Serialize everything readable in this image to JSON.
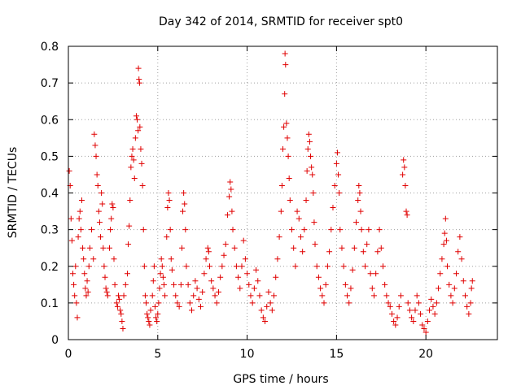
{
  "chart_data": {
    "type": "scatter",
    "title": "Day 342 of 2014, SRMTID for receiver spt0",
    "xlabel": "GPS time / hours",
    "ylabel": "SRMTID / TECUs",
    "xlim": [
      0,
      24
    ],
    "ylim": [
      0,
      0.8
    ],
    "xticks": [
      0,
      5,
      10,
      15,
      20
    ],
    "yticks": [
      0,
      0.1,
      0.2,
      0.3,
      0.4,
      0.5,
      0.6,
      0.7,
      0.8
    ],
    "xtick_labels": [
      "0",
      "5",
      "10",
      "15",
      "20"
    ],
    "ytick_labels": [
      "0",
      "0.1",
      "0.2",
      "0.3",
      "0.4",
      "0.5",
      "0.6",
      "0.7",
      "0.8"
    ],
    "marker": "+",
    "marker_color": "#e00000",
    "grid": true,
    "series": [
      {
        "name": "spt0",
        "points": [
          [
            0.05,
            0.46
          ],
          [
            0.1,
            0.42
          ],
          [
            0.15,
            0.33
          ],
          [
            0.2,
            0.27
          ],
          [
            0.25,
            0.18
          ],
          [
            0.3,
            0.15
          ],
          [
            0.35,
            0.12
          ],
          [
            0.4,
            0.2
          ],
          [
            0.45,
            0.1
          ],
          [
            0.5,
            0.06
          ],
          [
            0.55,
            0.28
          ],
          [
            0.6,
            0.33
          ],
          [
            0.65,
            0.35
          ],
          [
            0.7,
            0.3
          ],
          [
            0.75,
            0.38
          ],
          [
            0.8,
            0.25
          ],
          [
            0.85,
            0.22
          ],
          [
            0.9,
            0.18
          ],
          [
            0.95,
            0.14
          ],
          [
            1.0,
            0.12
          ],
          [
            1.05,
            0.16
          ],
          [
            1.1,
            0.13
          ],
          [
            1.15,
            0.2
          ],
          [
            1.2,
            0.25
          ],
          [
            1.3,
            0.3
          ],
          [
            1.4,
            0.22
          ],
          [
            1.45,
            0.56
          ],
          [
            1.5,
            0.53
          ],
          [
            1.55,
            0.5
          ],
          [
            1.6,
            0.45
          ],
          [
            1.65,
            0.42
          ],
          [
            1.7,
            0.35
          ],
          [
            1.75,
            0.32
          ],
          [
            1.8,
            0.28
          ],
          [
            1.85,
            0.4
          ],
          [
            1.9,
            0.37
          ],
          [
            1.95,
            0.25
          ],
          [
            2.0,
            0.2
          ],
          [
            2.05,
            0.17
          ],
          [
            2.1,
            0.14
          ],
          [
            2.15,
            0.13
          ],
          [
            2.2,
            0.12
          ],
          [
            2.3,
            0.25
          ],
          [
            2.35,
            0.3
          ],
          [
            2.4,
            0.33
          ],
          [
            2.45,
            0.37
          ],
          [
            2.5,
            0.36
          ],
          [
            2.55,
            0.22
          ],
          [
            2.6,
            0.15
          ],
          [
            2.7,
            0.1
          ],
          [
            2.75,
            0.09
          ],
          [
            2.8,
            0.12
          ],
          [
            2.85,
            0.11
          ],
          [
            2.9,
            0.08
          ],
          [
            2.95,
            0.07
          ],
          [
            3.0,
            0.05
          ],
          [
            3.05,
            0.03
          ],
          [
            3.1,
            0.12
          ],
          [
            3.2,
            0.15
          ],
          [
            3.3,
            0.18
          ],
          [
            3.35,
            0.26
          ],
          [
            3.4,
            0.31
          ],
          [
            3.45,
            0.38
          ],
          [
            3.5,
            0.47
          ],
          [
            3.55,
            0.5
          ],
          [
            3.6,
            0.52
          ],
          [
            3.65,
            0.49
          ],
          [
            3.7,
            0.44
          ],
          [
            3.75,
            0.55
          ],
          [
            3.8,
            0.61
          ],
          [
            3.85,
            0.6
          ],
          [
            3.9,
            0.57
          ],
          [
            3.92,
            0.74
          ],
          [
            3.95,
            0.71
          ],
          [
            3.98,
            0.7
          ],
          [
            4.0,
            0.58
          ],
          [
            4.05,
            0.52
          ],
          [
            4.1,
            0.48
          ],
          [
            4.15,
            0.42
          ],
          [
            4.2,
            0.3
          ],
          [
            4.25,
            0.2
          ],
          [
            4.3,
            0.12
          ],
          [
            4.35,
            0.1
          ],
          [
            4.4,
            0.07
          ],
          [
            4.45,
            0.06
          ],
          [
            4.5,
            0.05
          ],
          [
            4.55,
            0.04
          ],
          [
            4.6,
            0.08
          ],
          [
            4.7,
            0.12
          ],
          [
            4.75,
            0.16
          ],
          [
            4.8,
            0.2
          ],
          [
            4.85,
            0.09
          ],
          [
            4.9,
            0.06
          ],
          [
            4.95,
            0.05
          ],
          [
            5.0,
            0.07
          ],
          [
            5.05,
            0.1
          ],
          [
            5.1,
            0.14
          ],
          [
            5.15,
            0.18
          ],
          [
            5.2,
            0.22
          ],
          [
            5.25,
            0.2
          ],
          [
            5.3,
            0.17
          ],
          [
            5.35,
            0.15
          ],
          [
            5.4,
            0.12
          ],
          [
            5.5,
            0.28
          ],
          [
            5.55,
            0.36
          ],
          [
            5.6,
            0.4
          ],
          [
            5.65,
            0.38
          ],
          [
            5.7,
            0.3
          ],
          [
            5.75,
            0.22
          ],
          [
            5.8,
            0.19
          ],
          [
            5.9,
            0.15
          ],
          [
            6.0,
            0.12
          ],
          [
            6.1,
            0.1
          ],
          [
            6.2,
            0.09
          ],
          [
            6.3,
            0.15
          ],
          [
            6.35,
            0.25
          ],
          [
            6.4,
            0.35
          ],
          [
            6.45,
            0.4
          ],
          [
            6.5,
            0.37
          ],
          [
            6.55,
            0.3
          ],
          [
            6.6,
            0.2
          ],
          [
            6.7,
            0.15
          ],
          [
            6.8,
            0.1
          ],
          [
            6.9,
            0.08
          ],
          [
            7.0,
            0.12
          ],
          [
            7.1,
            0.16
          ],
          [
            7.2,
            0.14
          ],
          [
            7.3,
            0.11
          ],
          [
            7.4,
            0.09
          ],
          [
            7.5,
            0.13
          ],
          [
            7.6,
            0.18
          ],
          [
            7.7,
            0.22
          ],
          [
            7.8,
            0.25
          ],
          [
            7.85,
            0.24
          ],
          [
            7.9,
            0.2
          ],
          [
            8.0,
            0.16
          ],
          [
            8.1,
            0.14
          ],
          [
            8.2,
            0.12
          ],
          [
            8.3,
            0.1
          ],
          [
            8.4,
            0.13
          ],
          [
            8.5,
            0.17
          ],
          [
            8.6,
            0.2
          ],
          [
            8.7,
            0.23
          ],
          [
            8.8,
            0.26
          ],
          [
            8.9,
            0.34
          ],
          [
            9.0,
            0.39
          ],
          [
            9.05,
            0.43
          ],
          [
            9.1,
            0.41
          ],
          [
            9.15,
            0.35
          ],
          [
            9.2,
            0.3
          ],
          [
            9.3,
            0.25
          ],
          [
            9.4,
            0.2
          ],
          [
            9.5,
            0.17
          ],
          [
            9.6,
            0.14
          ],
          [
            9.7,
            0.2
          ],
          [
            9.8,
            0.27
          ],
          [
            9.9,
            0.22
          ],
          [
            10.0,
            0.18
          ],
          [
            10.1,
            0.15
          ],
          [
            10.2,
            0.12
          ],
          [
            10.3,
            0.1
          ],
          [
            10.4,
            0.14
          ],
          [
            10.5,
            0.19
          ],
          [
            10.6,
            0.16
          ],
          [
            10.7,
            0.12
          ],
          [
            10.8,
            0.08
          ],
          [
            10.9,
            0.06
          ],
          [
            11.0,
            0.05
          ],
          [
            11.1,
            0.09
          ],
          [
            11.2,
            0.13
          ],
          [
            11.3,
            0.1
          ],
          [
            11.4,
            0.08
          ],
          [
            11.5,
            0.12
          ],
          [
            11.6,
            0.17
          ],
          [
            11.7,
            0.22
          ],
          [
            11.8,
            0.28
          ],
          [
            11.9,
            0.35
          ],
          [
            11.95,
            0.42
          ],
          [
            12.0,
            0.52
          ],
          [
            12.05,
            0.58
          ],
          [
            12.1,
            0.67
          ],
          [
            12.12,
            0.78
          ],
          [
            12.15,
            0.75
          ],
          [
            12.2,
            0.59
          ],
          [
            12.25,
            0.55
          ],
          [
            12.3,
            0.5
          ],
          [
            12.35,
            0.44
          ],
          [
            12.4,
            0.38
          ],
          [
            12.5,
            0.3
          ],
          [
            12.6,
            0.25
          ],
          [
            12.7,
            0.2
          ],
          [
            12.8,
            0.35
          ],
          [
            12.9,
            0.33
          ],
          [
            13.0,
            0.28
          ],
          [
            13.1,
            0.24
          ],
          [
            13.2,
            0.3
          ],
          [
            13.3,
            0.38
          ],
          [
            13.35,
            0.46
          ],
          [
            13.4,
            0.52
          ],
          [
            13.45,
            0.56
          ],
          [
            13.5,
            0.54
          ],
          [
            13.55,
            0.5
          ],
          [
            13.6,
            0.47
          ],
          [
            13.65,
            0.45
          ],
          [
            13.7,
            0.4
          ],
          [
            13.75,
            0.32
          ],
          [
            13.8,
            0.26
          ],
          [
            13.9,
            0.2
          ],
          [
            14.0,
            0.17
          ],
          [
            14.1,
            0.14
          ],
          [
            14.2,
            0.12
          ],
          [
            14.3,
            0.1
          ],
          [
            14.4,
            0.15
          ],
          [
            14.5,
            0.2
          ],
          [
            14.6,
            0.24
          ],
          [
            14.7,
            0.3
          ],
          [
            14.8,
            0.36
          ],
          [
            14.9,
            0.42
          ],
          [
            15.0,
            0.48
          ],
          [
            15.05,
            0.51
          ],
          [
            15.1,
            0.45
          ],
          [
            15.15,
            0.4
          ],
          [
            15.2,
            0.3
          ],
          [
            15.3,
            0.25
          ],
          [
            15.4,
            0.2
          ],
          [
            15.5,
            0.15
          ],
          [
            15.6,
            0.12
          ],
          [
            15.7,
            0.1
          ],
          [
            15.8,
            0.14
          ],
          [
            15.9,
            0.19
          ],
          [
            16.0,
            0.25
          ],
          [
            16.1,
            0.32
          ],
          [
            16.2,
            0.38
          ],
          [
            16.25,
            0.42
          ],
          [
            16.3,
            0.4
          ],
          [
            16.35,
            0.35
          ],
          [
            16.4,
            0.3
          ],
          [
            16.5,
            0.24
          ],
          [
            16.6,
            0.2
          ],
          [
            16.7,
            0.26
          ],
          [
            16.8,
            0.3
          ],
          [
            16.9,
            0.18
          ],
          [
            17.0,
            0.14
          ],
          [
            17.1,
            0.12
          ],
          [
            17.2,
            0.18
          ],
          [
            17.3,
            0.24
          ],
          [
            17.4,
            0.3
          ],
          [
            17.5,
            0.25
          ],
          [
            17.6,
            0.2
          ],
          [
            17.7,
            0.15
          ],
          [
            17.8,
            0.12
          ],
          [
            17.9,
            0.1
          ],
          [
            18.0,
            0.09
          ],
          [
            18.1,
            0.07
          ],
          [
            18.2,
            0.05
          ],
          [
            18.3,
            0.04
          ],
          [
            18.4,
            0.06
          ],
          [
            18.5,
            0.09
          ],
          [
            18.6,
            0.12
          ],
          [
            18.7,
            0.45
          ],
          [
            18.75,
            0.49
          ],
          [
            18.8,
            0.47
          ],
          [
            18.85,
            0.42
          ],
          [
            18.9,
            0.35
          ],
          [
            18.95,
            0.34
          ],
          [
            19.0,
            0.1
          ],
          [
            19.1,
            0.08
          ],
          [
            19.2,
            0.06
          ],
          [
            19.3,
            0.05
          ],
          [
            19.4,
            0.08
          ],
          [
            19.5,
            0.12
          ],
          [
            19.6,
            0.1
          ],
          [
            19.7,
            0.07
          ],
          [
            19.8,
            0.04
          ],
          [
            19.9,
            0.03
          ],
          [
            20.0,
            0.02
          ],
          [
            20.1,
            0.05
          ],
          [
            20.2,
            0.08
          ],
          [
            20.3,
            0.11
          ],
          [
            20.4,
            0.09
          ],
          [
            20.5,
            0.07
          ],
          [
            20.6,
            0.1
          ],
          [
            20.7,
            0.14
          ],
          [
            20.8,
            0.18
          ],
          [
            20.9,
            0.22
          ],
          [
            21.0,
            0.26
          ],
          [
            21.05,
            0.29
          ],
          [
            21.1,
            0.33
          ],
          [
            21.15,
            0.27
          ],
          [
            21.2,
            0.2
          ],
          [
            21.3,
            0.15
          ],
          [
            21.4,
            0.12
          ],
          [
            21.5,
            0.1
          ],
          [
            21.6,
            0.14
          ],
          [
            21.7,
            0.18
          ],
          [
            21.8,
            0.24
          ],
          [
            21.9,
            0.28
          ],
          [
            22.0,
            0.22
          ],
          [
            22.1,
            0.16
          ],
          [
            22.2,
            0.12
          ],
          [
            22.3,
            0.09
          ],
          [
            22.4,
            0.07
          ],
          [
            22.5,
            0.1
          ],
          [
            22.55,
            0.14
          ],
          [
            22.6,
            0.16
          ]
        ]
      }
    ]
  }
}
